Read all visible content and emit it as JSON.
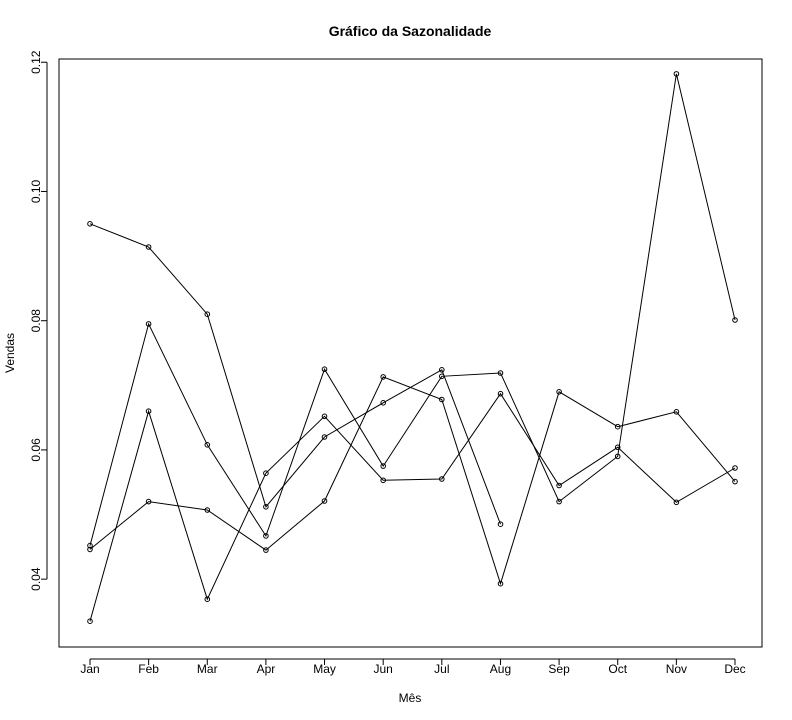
{
  "chart_data": {
    "type": "line",
    "title": "Gráfico da Sazonalidade",
    "xlabel": "Mês",
    "ylabel": "Vendas",
    "categories": [
      "Jan",
      "Feb",
      "Mar",
      "Apr",
      "May",
      "Jun",
      "Jul",
      "Aug",
      "Sep",
      "Oct",
      "Nov",
      "Dec"
    ],
    "yticks": [
      "0.04",
      "0.06",
      "0.08",
      "0.10",
      "0.12"
    ],
    "ylim": [
      0.0295,
      0.1205
    ],
    "grid": false,
    "legend": "none",
    "marker": "open-circle",
    "series": [
      {
        "values": [
          0.095,
          0.0914,
          0.081,
          0.0512,
          0.062,
          0.0673,
          0.0724,
          0.0485,
          null,
          null,
          null,
          null
        ]
      },
      {
        "values": [
          0.0452,
          0.0795,
          0.0608,
          0.0467,
          0.0725,
          0.0575,
          0.0714,
          0.0719,
          0.052,
          0.059,
          0.1182,
          0.0801
        ]
      },
      {
        "values": [
          0.0335,
          0.066,
          0.0369,
          0.0564,
          0.0652,
          0.0553,
          0.0555,
          0.0687,
          0.0545,
          0.0604,
          0.0519,
          0.0572
        ]
      },
      {
        "values": [
          0.0446,
          0.052,
          0.0507,
          0.0445,
          0.0521,
          0.0713,
          0.0678,
          0.0393,
          0.069,
          0.0636,
          0.0659,
          0.0551
        ]
      }
    ]
  }
}
